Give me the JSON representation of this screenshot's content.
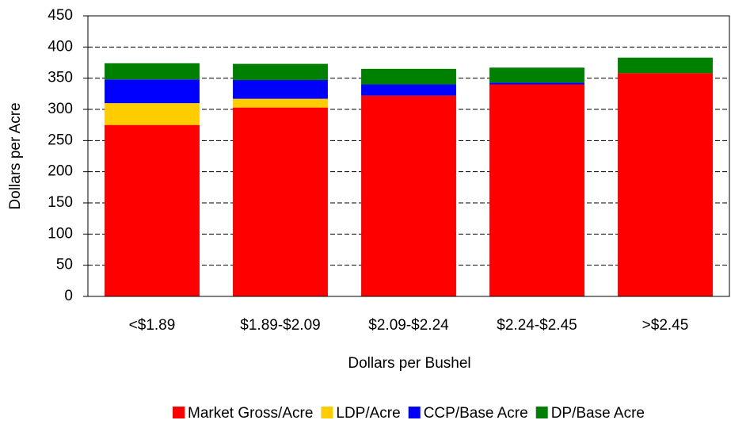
{
  "chart_data": {
    "type": "stacked_bar",
    "x_label": "Dollars per Bushel",
    "y_label": "Dollars per Acre",
    "categories": [
      "<$1.89",
      "$1.89-$2.09",
      "$2.09-$2.24",
      "$2.24-$2.45",
      ">$2.45"
    ],
    "series": [
      {
        "name": "Market Gross/Acre",
        "color": "#ff0000",
        "values": [
          275,
          303,
          322,
          340,
          358
        ]
      },
      {
        "name": "LDP/Acre",
        "color": "#ffcc00",
        "values": [
          35,
          14,
          0,
          0,
          0
        ]
      },
      {
        "name": "CCP/Base Acre",
        "color": "#0000ff",
        "values": [
          38,
          30,
          18,
          3,
          0
        ]
      },
      {
        "name": "DP/Base Acre",
        "color": "#008000",
        "values": [
          26,
          26,
          25,
          24,
          25
        ]
      }
    ],
    "ylim": [
      0,
      450
    ],
    "yticks": [
      0,
      50,
      100,
      150,
      200,
      250,
      300,
      350,
      400,
      450
    ],
    "grid": true,
    "legend": "bottom"
  }
}
